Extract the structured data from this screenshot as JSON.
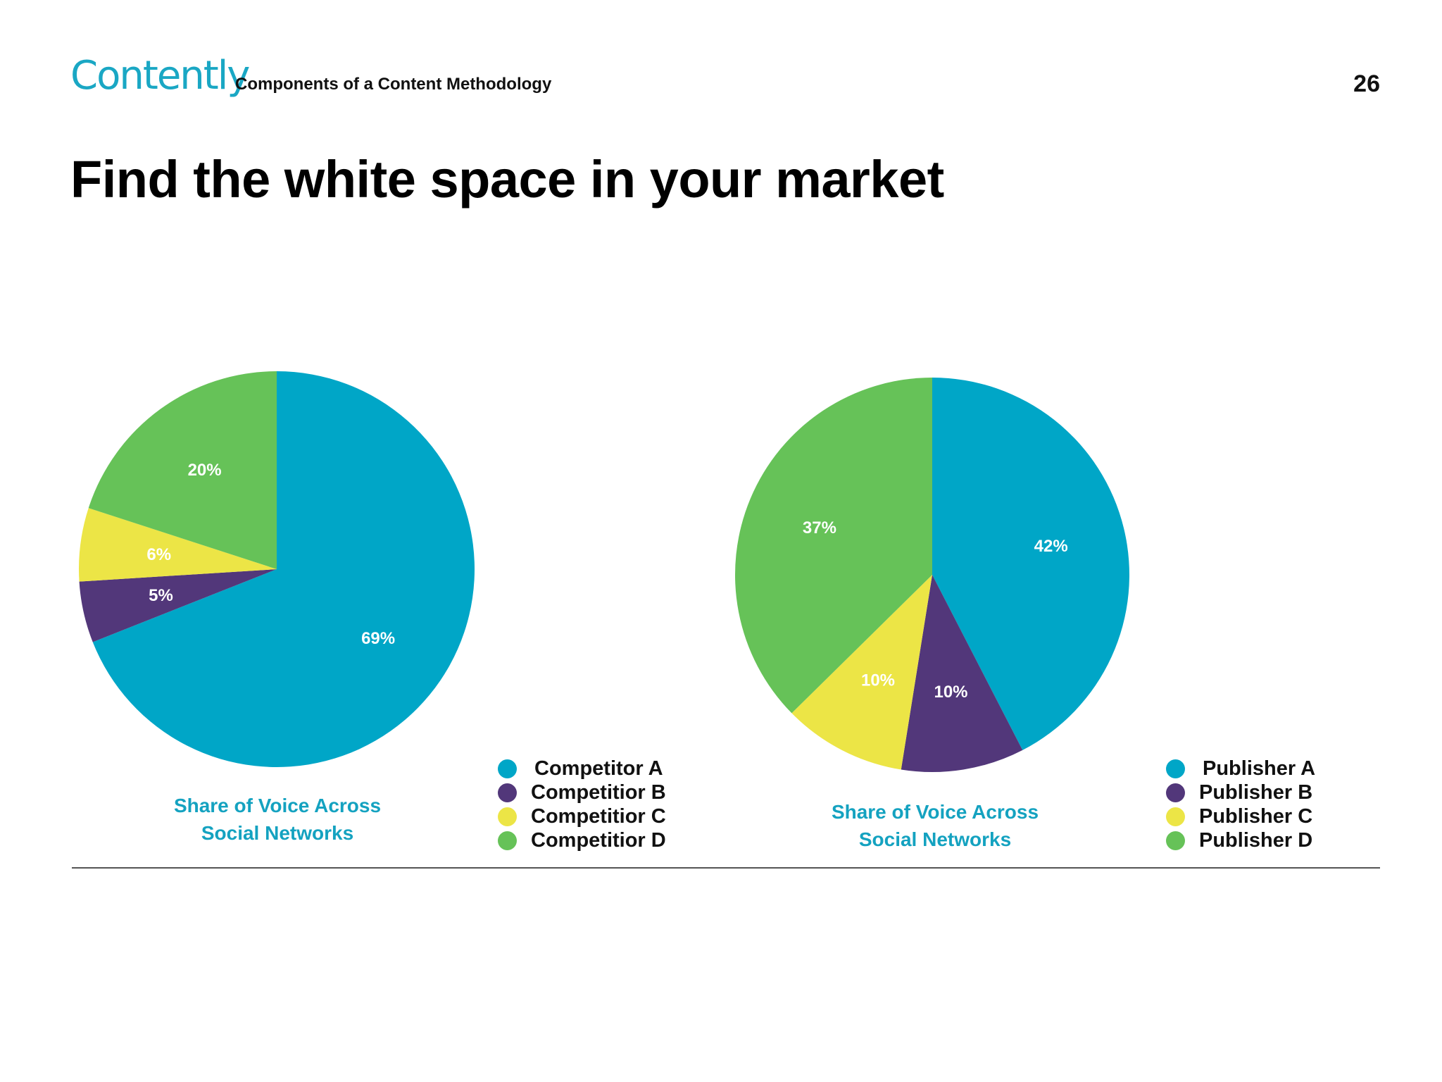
{
  "header": {
    "logo_text": "Contently",
    "subtitle": "Components of a Content Methodology",
    "page_number": "26"
  },
  "headline": "Find the white space in your market",
  "colors": {
    "teal": "#00a6c7",
    "purple": "#52377a",
    "yellow": "#ece546",
    "green": "#66c258",
    "caption": "#14a2c0"
  },
  "chart_data": [
    {
      "type": "pie",
      "title": "",
      "caption_lines": [
        "Share of Voice Across",
        "Social Networks"
      ],
      "legend_placement": "bottom-right",
      "categories": [
        "Competitor  A",
        "Competitior B",
        "Competitior C",
        "Competitior D"
      ],
      "values": [
        69,
        5,
        6,
        20
      ],
      "labels": [
        "69%",
        "5%",
        "6%",
        "20%"
      ],
      "colors": [
        "#00a6c7",
        "#52377a",
        "#ece546",
        "#66c258"
      ]
    },
    {
      "type": "pie",
      "title": "",
      "caption_lines": [
        "Share of Voice Across",
        "Social Networks"
      ],
      "legend_placement": "bottom-right",
      "categories": [
        "Publisher  A",
        "Publisher B",
        "Publisher C",
        "Publisher D"
      ],
      "values": [
        42,
        10,
        10,
        37
      ],
      "labels": [
        "42%",
        "10%",
        "10%",
        "37%"
      ],
      "colors": [
        "#00a6c7",
        "#52377a",
        "#ece546",
        "#66c258"
      ]
    }
  ]
}
